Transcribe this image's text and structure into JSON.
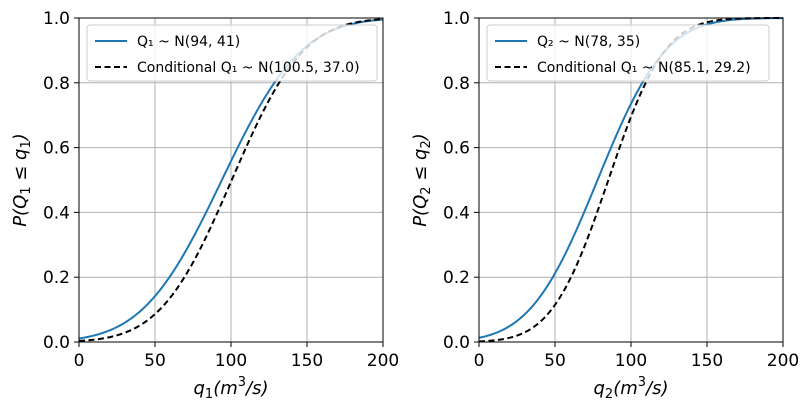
{
  "chart_data": [
    {
      "type": "line",
      "xlabel_main": "q",
      "xlabel_sub": "1",
      "xlabel_units": "(m",
      "xlabel_units_sup": "3",
      "xlabel_units_tail": "/s)",
      "ylabel_text": "P(Q",
      "ylabel_sub1": "1",
      "ylabel_mid": " ≤ q",
      "ylabel_sub2": "1",
      "ylabel_tail": ")",
      "xlim": [
        0,
        200
      ],
      "ylim": [
        0,
        1
      ],
      "xticks": [
        0,
        50,
        100,
        150,
        200
      ],
      "yticks": [
        0.0,
        0.2,
        0.4,
        0.6,
        0.8,
        1.0
      ],
      "xtick_labels": [
        "0",
        "50",
        "100",
        "150",
        "200"
      ],
      "ytick_labels": [
        "0.0",
        "0.2",
        "0.4",
        "0.6",
        "0.8",
        "1.0"
      ],
      "grid": true,
      "legend_position": "top-left",
      "series": [
        {
          "name": "Q₁ ~ N(94, 41)",
          "dist": "normal_cdf",
          "mean": 94,
          "sd": 41,
          "color": "#1f77b4",
          "style": "solid"
        },
        {
          "name": "Conditional Q₁ ~ N(100.5, 37.0)",
          "dist": "normal_cdf",
          "mean": 100.5,
          "sd": 37.0,
          "color": "#000000",
          "style": "dashed"
        }
      ]
    },
    {
      "type": "line",
      "xlabel_main": "q",
      "xlabel_sub": "2",
      "xlabel_units": "(m",
      "xlabel_units_sup": "3",
      "xlabel_units_tail": "/s)",
      "ylabel_text": "P(Q",
      "ylabel_sub1": "2",
      "ylabel_mid": " ≤ q",
      "ylabel_sub2": "2",
      "ylabel_tail": ")",
      "xlim": [
        0,
        200
      ],
      "ylim": [
        0,
        1
      ],
      "xticks": [
        0,
        50,
        100,
        150,
        200
      ],
      "yticks": [
        0.0,
        0.2,
        0.4,
        0.6,
        0.8,
        1.0
      ],
      "xtick_labels": [
        "0",
        "50",
        "100",
        "150",
        "200"
      ],
      "ytick_labels": [
        "0.0",
        "0.2",
        "0.4",
        "0.6",
        "0.8",
        "1.0"
      ],
      "grid": true,
      "legend_position": "top-left",
      "series": [
        {
          "name": "Q₂ ~ N(78, 35)",
          "dist": "normal_cdf",
          "mean": 78,
          "sd": 35,
          "color": "#1f77b4",
          "style": "solid"
        },
        {
          "name": "Conditional Q₁ ~ N(85.1, 29.2)",
          "dist": "normal_cdf",
          "mean": 85.1,
          "sd": 29.2,
          "color": "#000000",
          "style": "dashed"
        }
      ]
    }
  ]
}
